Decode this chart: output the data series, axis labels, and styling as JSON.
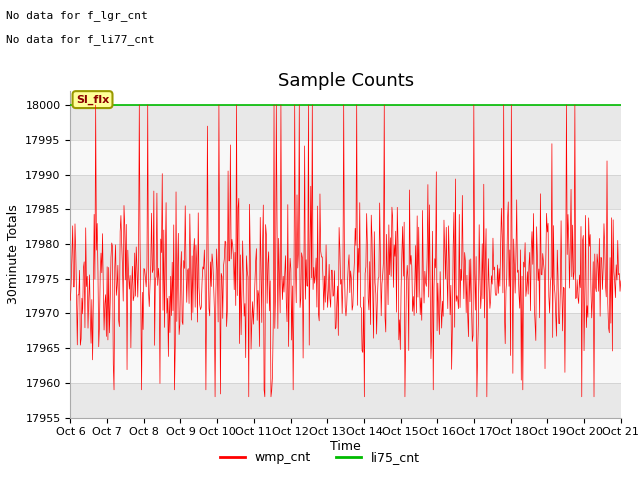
{
  "title": "Sample Counts",
  "ylabel": "30minute Totals",
  "xlabel": "Time",
  "no_data_text": [
    "No data for f_lgr_cnt",
    "No data for f_li77_cnt"
  ],
  "sl_flx_label": "Sl_flx",
  "wmp_cnt_label": "wmp_cnt",
  "li75_cnt_label": "li75_cnt",
  "wmp_color": "#ff0000",
  "li75_color": "#00bb00",
  "li75_value": 18000,
  "ylim": [
    17955,
    18002
  ],
  "yticks": [
    17955,
    17960,
    17965,
    17970,
    17975,
    17980,
    17985,
    17990,
    17995,
    18000
  ],
  "n_points": 720,
  "base_value": 17975,
  "noise_std": 5,
  "background_color": "#ffffff",
  "band_colors": [
    "#e8e8e8",
    "#f8f8f8"
  ],
  "band_ranges": [
    [
      17955,
      17960
    ],
    [
      17960,
      17965
    ],
    [
      17965,
      17970
    ],
    [
      17970,
      17975
    ],
    [
      17975,
      17980
    ],
    [
      17980,
      17985
    ],
    [
      17985,
      17990
    ],
    [
      17990,
      17995
    ],
    [
      17995,
      18000
    ]
  ],
  "xtick_labels": [
    "Oct 6",
    "Oct 7",
    "Oct 8",
    "Oct 9",
    "Oct 10",
    "Oct 11",
    "Oct 12",
    "Oct 13",
    "Oct 14",
    "Oct 15",
    "Oct 16",
    "Oct 17",
    "Oct 18",
    "Oct 19",
    "Oct 20",
    "Oct 21"
  ],
  "title_fontsize": 13,
  "label_fontsize": 9,
  "tick_fontsize": 8,
  "nodata_fontsize": 8,
  "legend_fontsize": 9,
  "slflx_fontsize": 8
}
